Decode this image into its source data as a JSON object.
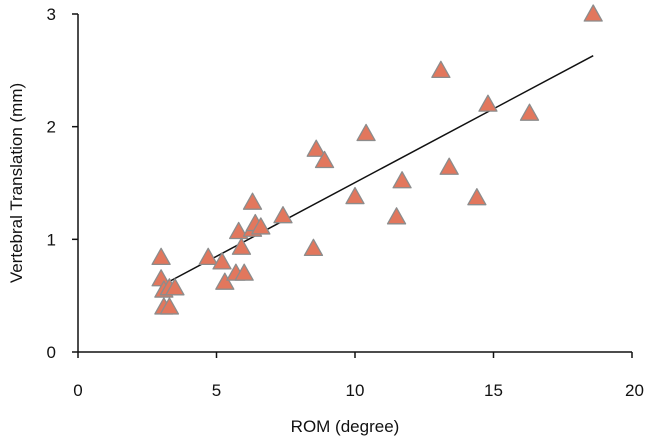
{
  "chart_data": {
    "type": "scatter",
    "title": "",
    "xlabel": "ROM (degree)",
    "ylabel": "Vertebral Translation (mm)",
    "xlim": [
      0,
      20
    ],
    "ylim": [
      0,
      3
    ],
    "x_ticks": [
      "0",
      "5",
      "10",
      "15",
      "20"
    ],
    "y_ticks": [
      "0",
      "1",
      "2",
      "3"
    ],
    "grid": false,
    "marker": "triangle",
    "colors": {
      "marker_fill": "#E2775D",
      "marker_stroke": "#8C8C8C",
      "trendline": "#111111",
      "axis": "#111111"
    },
    "series": [
      {
        "points": [
          [
            3.0,
            0.84
          ],
          [
            3.0,
            0.65
          ],
          [
            3.1,
            0.55
          ],
          [
            3.3,
            0.57
          ],
          [
            3.5,
            0.57
          ],
          [
            3.1,
            0.4
          ],
          [
            3.3,
            0.4
          ],
          [
            4.7,
            0.84
          ],
          [
            5.2,
            0.8
          ],
          [
            5.3,
            0.62
          ],
          [
            5.7,
            0.7
          ],
          [
            5.8,
            1.07
          ],
          [
            5.9,
            0.93
          ],
          [
            6.0,
            0.7
          ],
          [
            6.3,
            1.33
          ],
          [
            6.3,
            1.09
          ],
          [
            6.4,
            1.14
          ],
          [
            6.6,
            1.11
          ],
          [
            7.4,
            1.21
          ],
          [
            8.5,
            0.92
          ],
          [
            8.6,
            1.8
          ],
          [
            8.9,
            1.7
          ],
          [
            10.0,
            1.38
          ],
          [
            10.4,
            1.94
          ],
          [
            11.5,
            1.2
          ],
          [
            11.7,
            1.52
          ],
          [
            13.1,
            2.5
          ],
          [
            13.4,
            1.64
          ],
          [
            14.4,
            1.37
          ],
          [
            14.8,
            2.2
          ],
          [
            16.3,
            2.12
          ],
          [
            18.6,
            3.0
          ]
        ]
      }
    ],
    "trendline": {
      "x": [
        3.1,
        18.6
      ],
      "y": [
        0.6,
        2.63
      ]
    }
  }
}
